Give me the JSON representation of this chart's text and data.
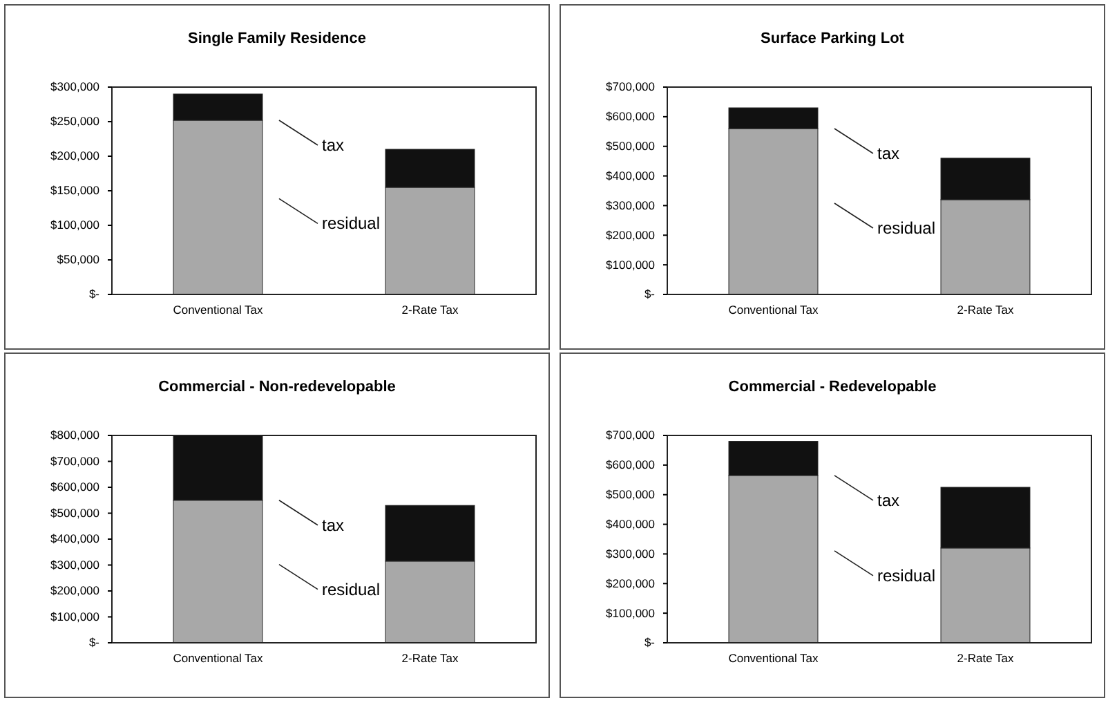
{
  "chart_data": [
    {
      "type": "bar",
      "title": "Single Family Residence",
      "categories": [
        "Conventional Tax",
        "2-Rate Tax"
      ],
      "stacked": true,
      "grid": false,
      "series": [
        {
          "name": "residual",
          "color": "#a8a8a8",
          "values": [
            252000,
            155000
          ]
        },
        {
          "name": "tax",
          "color": "#111111",
          "values": [
            38000,
            55000
          ]
        }
      ],
      "ylim": [
        0,
        300000
      ],
      "yticks": [
        {
          "value": 0,
          "label": "$-"
        },
        {
          "value": 50000,
          "label": "$50,000"
        },
        {
          "value": 100000,
          "label": "$100,000"
        },
        {
          "value": 150000,
          "label": "$150,000"
        },
        {
          "value": 200000,
          "label": "$200,000"
        },
        {
          "value": 250000,
          "label": "$250,000"
        },
        {
          "value": 300000,
          "label": "$300,000"
        }
      ]
    },
    {
      "type": "bar",
      "title": "Surface Parking Lot",
      "categories": [
        "Conventional Tax",
        "2-Rate Tax"
      ],
      "stacked": true,
      "grid": false,
      "series": [
        {
          "name": "residual",
          "color": "#a8a8a8",
          "values": [
            560000,
            320000
          ]
        },
        {
          "name": "tax",
          "color": "#111111",
          "values": [
            70000,
            140000
          ]
        }
      ],
      "ylim": [
        0,
        700000
      ],
      "yticks": [
        {
          "value": 0,
          "label": "$-"
        },
        {
          "value": 100000,
          "label": "$100,000"
        },
        {
          "value": 200000,
          "label": "$200,000"
        },
        {
          "value": 300000,
          "label": "$300,000"
        },
        {
          "value": 400000,
          "label": "$400,000"
        },
        {
          "value": 500000,
          "label": "$500,000"
        },
        {
          "value": 600000,
          "label": "$600,000"
        },
        {
          "value": 700000,
          "label": "$700,000"
        }
      ]
    },
    {
      "type": "bar",
      "title": "Commercial - Non-redevelopable",
      "categories": [
        "Conventional Tax",
        "2-Rate Tax"
      ],
      "stacked": true,
      "grid": false,
      "series": [
        {
          "name": "residual",
          "color": "#a8a8a8",
          "values": [
            550000,
            315000
          ]
        },
        {
          "name": "tax",
          "color": "#111111",
          "values": [
            250000,
            215000
          ]
        }
      ],
      "ylim": [
        0,
        800000
      ],
      "yticks": [
        {
          "value": 0,
          "label": "$-"
        },
        {
          "value": 100000,
          "label": "$100,000"
        },
        {
          "value": 200000,
          "label": "$200,000"
        },
        {
          "value": 300000,
          "label": "$300,000"
        },
        {
          "value": 400000,
          "label": "$400,000"
        },
        {
          "value": 500000,
          "label": "$500,000"
        },
        {
          "value": 600000,
          "label": "$600,000"
        },
        {
          "value": 700000,
          "label": "$700,000"
        },
        {
          "value": 800000,
          "label": "$800,000"
        }
      ]
    },
    {
      "type": "bar",
      "title": "Commercial - Redevelopable",
      "categories": [
        "Conventional Tax",
        "2-Rate Tax"
      ],
      "stacked": true,
      "grid": false,
      "series": [
        {
          "name": "residual",
          "color": "#a8a8a8",
          "values": [
            565000,
            320000
          ]
        },
        {
          "name": "tax",
          "color": "#111111",
          "values": [
            115000,
            205000
          ]
        }
      ],
      "ylim": [
        0,
        700000
      ],
      "yticks": [
        {
          "value": 0,
          "label": "$-"
        },
        {
          "value": 100000,
          "label": "$100,000"
        },
        {
          "value": 200000,
          "label": "$200,000"
        },
        {
          "value": 300000,
          "label": "$300,000"
        },
        {
          "value": 400000,
          "label": "$400,000"
        },
        {
          "value": 500000,
          "label": "$500,000"
        },
        {
          "value": 600000,
          "label": "$600,000"
        },
        {
          "value": 700000,
          "label": "$700,000"
        }
      ]
    }
  ]
}
